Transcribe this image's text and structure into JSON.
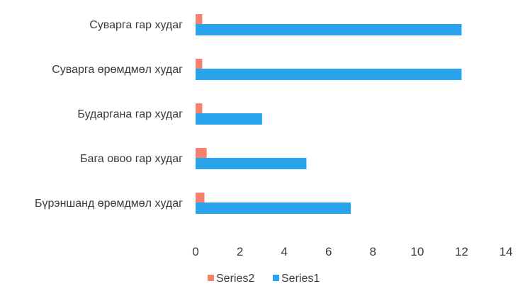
{
  "chart_data": {
    "type": "bar",
    "orientation": "horizontal",
    "categories": [
      "Суварга гар худаг",
      "Суварга өрөмдмөл худаг",
      "Бударгана гар худаг",
      "Бага овоо гар худаг",
      "Бүрэншанд өрөмдмөл худаг"
    ],
    "series": [
      {
        "name": "Series2",
        "values": [
          0.3,
          0.3,
          0.3,
          0.5,
          0.4
        ],
        "color": "#f4806d"
      },
      {
        "name": "Series1",
        "values": [
          12,
          12,
          3,
          5,
          7
        ],
        "color": "#29a3ec"
      }
    ],
    "xlim": [
      0,
      14
    ],
    "xticks": [
      "0",
      "2",
      "4",
      "6",
      "8",
      "10",
      "12",
      "14"
    ],
    "title": "",
    "xlabel": "",
    "ylabel": "",
    "grid": false,
    "legend_position": "bottom",
    "legend_order": [
      "Series2",
      "Series1"
    ]
  }
}
